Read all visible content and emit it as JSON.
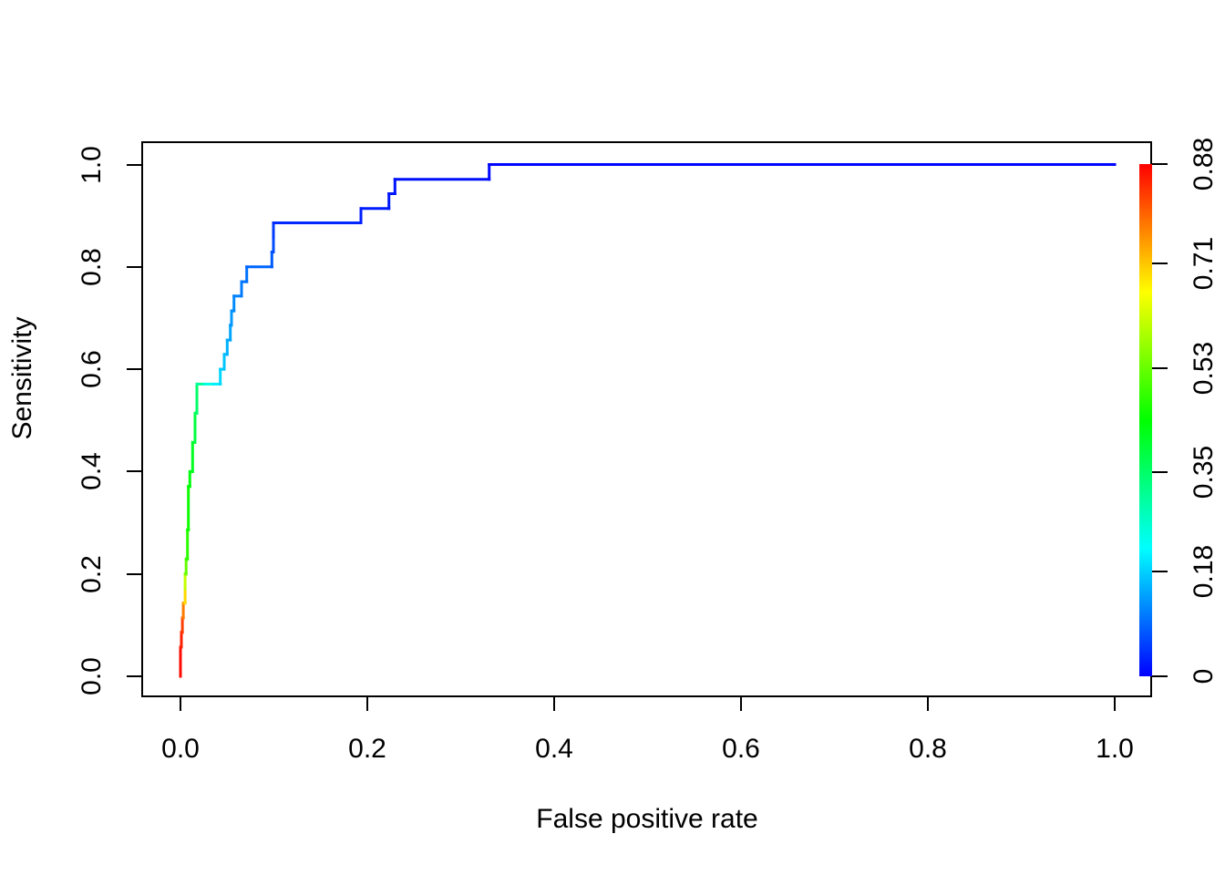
{
  "chart_data": {
    "type": "line",
    "subtype": "roc-curve-step-colorized",
    "xlabel": "False positive rate",
    "ylabel": "Sensitivity",
    "xlim": [
      0,
      1
    ],
    "ylim": [
      0,
      1
    ],
    "grid": false,
    "x_tick_labels": [
      "0.0",
      "0.2",
      "0.4",
      "0.6",
      "0.8",
      "1.0"
    ],
    "x_tick_values": [
      0,
      0.2,
      0.4,
      0.6,
      0.8,
      1.0
    ],
    "y_tick_labels": [
      "0.0",
      "0.2",
      "0.4",
      "0.6",
      "0.8",
      "1.0"
    ],
    "y_tick_values": [
      0,
      0.2,
      0.4,
      0.6,
      0.8,
      1.0
    ],
    "colorbar": {
      "min": 0,
      "max": 0.88,
      "tick_labels": [
        "0.88",
        "0.71",
        "0.53",
        "0.35",
        "0.18",
        "0"
      ],
      "tick_values": [
        0.88,
        0.71,
        0.53,
        0.35,
        0.18,
        0
      ],
      "gradient_top_to_bottom": [
        "#ff0000",
        "#ffff00",
        "#00ff00",
        "#00ffff",
        "#0000ff"
      ]
    },
    "series": [
      {
        "points_fpr_sens_cutoff": [
          [
            0.0,
            0.0,
            0.88
          ],
          [
            0.0,
            0.057,
            0.862
          ],
          [
            0.001,
            0.057,
            0.858
          ],
          [
            0.001,
            0.086,
            0.848
          ],
          [
            0.002,
            0.086,
            0.843
          ],
          [
            0.002,
            0.114,
            0.812
          ],
          [
            0.003,
            0.114,
            0.8
          ],
          [
            0.003,
            0.143,
            0.748
          ],
          [
            0.005,
            0.143,
            0.73
          ],
          [
            0.005,
            0.171,
            0.655
          ],
          [
            0.005,
            0.2,
            0.565
          ],
          [
            0.006,
            0.2,
            0.552
          ],
          [
            0.006,
            0.229,
            0.5
          ],
          [
            0.0075,
            0.229,
            0.488
          ],
          [
            0.0075,
            0.286,
            0.465
          ],
          [
            0.0085,
            0.286,
            0.46
          ],
          [
            0.0085,
            0.371,
            0.44
          ],
          [
            0.01,
            0.371,
            0.435
          ],
          [
            0.01,
            0.4,
            0.426
          ],
          [
            0.013,
            0.4,
            0.42
          ],
          [
            0.013,
            0.457,
            0.405
          ],
          [
            0.0156,
            0.457,
            0.398
          ],
          [
            0.0156,
            0.514,
            0.374
          ],
          [
            0.0176,
            0.514,
            0.364
          ],
          [
            0.0176,
            0.571,
            0.335
          ],
          [
            0.026,
            0.571,
            0.272
          ],
          [
            0.035,
            0.571,
            0.22
          ],
          [
            0.0426,
            0.571,
            0.19
          ],
          [
            0.0426,
            0.6,
            0.18
          ],
          [
            0.0468,
            0.6,
            0.174
          ],
          [
            0.0468,
            0.629,
            0.164
          ],
          [
            0.05,
            0.629,
            0.159
          ],
          [
            0.05,
            0.657,
            0.15
          ],
          [
            0.0534,
            0.657,
            0.146
          ],
          [
            0.0534,
            0.686,
            0.138
          ],
          [
            0.0546,
            0.686,
            0.135
          ],
          [
            0.0546,
            0.714,
            0.127
          ],
          [
            0.0573,
            0.714,
            0.124
          ],
          [
            0.0573,
            0.743,
            0.116
          ],
          [
            0.0654,
            0.743,
            0.109
          ],
          [
            0.0654,
            0.771,
            0.103
          ],
          [
            0.0709,
            0.771,
            0.1
          ],
          [
            0.0709,
            0.8,
            0.095
          ],
          [
            0.0979,
            0.8,
            0.082
          ],
          [
            0.0979,
            0.829,
            0.074
          ],
          [
            0.0995,
            0.829,
            0.071
          ],
          [
            0.0995,
            0.857,
            0.06
          ],
          [
            0.0995,
            0.886,
            0.042
          ],
          [
            0.1932,
            0.886,
            0.028
          ],
          [
            0.1932,
            0.914,
            0.025
          ],
          [
            0.2231,
            0.914,
            0.022
          ],
          [
            0.2231,
            0.943,
            0.02
          ],
          [
            0.2296,
            0.943,
            0.019
          ],
          [
            0.2296,
            0.971,
            0.016
          ],
          [
            0.3304,
            0.971,
            0.011
          ],
          [
            0.3304,
            1.0,
            0.008
          ],
          [
            1.0,
            1.0,
            0.0
          ]
        ]
      }
    ]
  }
}
